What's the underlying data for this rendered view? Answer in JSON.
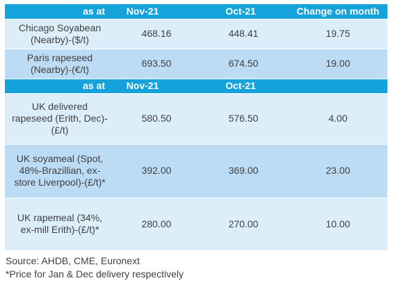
{
  "header1": {
    "col1": "as at",
    "col2": "Nov-21",
    "col3": "Oct-21",
    "col4": "Change on month"
  },
  "header2": {
    "col1": "as at",
    "col2": "Nov-21",
    "col3": "Oct-21"
  },
  "rows": [
    {
      "label": "Chicago Soyabean (Nearby)-($/t)",
      "nov": "468.16",
      "oct": "448.41",
      "change": "19.75"
    },
    {
      "label": "Paris rapeseed (Nearby)-(€/t)",
      "nov": "693.50",
      "oct": "674.50",
      "change": "19.00"
    },
    {
      "label": "UK delivered rapeseed (Erith, Dec)-(£/t)",
      "nov": "580.50",
      "oct": "576.50",
      "change": "4.00"
    },
    {
      "label": "UK soyameal (Spot, 48%-Brazillian, ex-store Liverpool)-(£/t)*",
      "nov": "392.00",
      "oct": "369.00",
      "change": "23.00"
    },
    {
      "label": "UK rapemeal (34%, ex-mill Erith)-(£/t)*",
      "nov": "280.00",
      "oct": "270.00",
      "change": "10.00"
    }
  ],
  "source": "Source: AHDB, CME, Euronext",
  "note": "*Price for Jan & Dec delivery respectively",
  "colors": {
    "header": "#16a3dc",
    "row_light": "#dceef9",
    "row_mid": "#bcdcf5"
  }
}
